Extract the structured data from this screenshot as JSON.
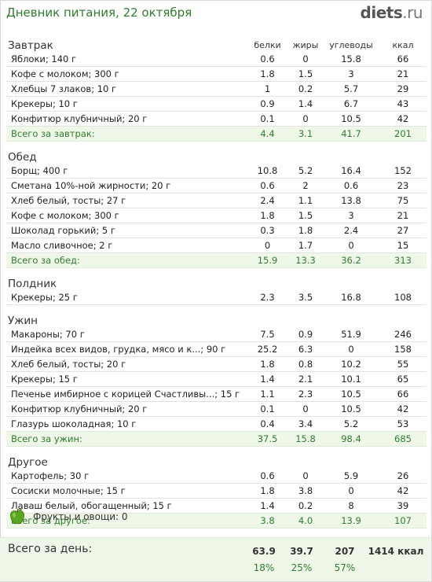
{
  "page": {
    "title": "Дневник питания, 22 октября",
    "logo_main": "diets",
    "logo_domain": ".ru"
  },
  "columns": [
    "белки",
    "жиры",
    "углеводы",
    "ккал"
  ],
  "meals": [
    {
      "name": "Завтрак",
      "show_headers": true,
      "items": [
        {
          "name": "Яблоки; 140 г",
          "protein": "0.6",
          "fat": "0",
          "carbs": "15.8",
          "kcal": "66"
        },
        {
          "name": "Кофе с молоком; 300 г",
          "protein": "1.8",
          "fat": "1.5",
          "carbs": "3",
          "kcal": "21"
        },
        {
          "name": "Хлебцы 7 злаков; 10 г",
          "protein": "1",
          "fat": "0.2",
          "carbs": "5.7",
          "kcal": "29"
        },
        {
          "name": "Крекеры; 10 г",
          "protein": "0.9",
          "fat": "1.4",
          "carbs": "6.7",
          "kcal": "43"
        },
        {
          "name": "Конфитюр клубничный; 20 г",
          "protein": "0.1",
          "fat": "0",
          "carbs": "10.5",
          "kcal": "42"
        }
      ],
      "total": {
        "label": "Всего за завтрак:",
        "protein": "4.4",
        "fat": "3.1",
        "carbs": "41.7",
        "kcal": "201"
      }
    },
    {
      "name": "Обед",
      "show_headers": false,
      "items": [
        {
          "name": "Борщ; 400 г",
          "protein": "10.8",
          "fat": "5.2",
          "carbs": "16.4",
          "kcal": "152"
        },
        {
          "name": "Сметана 10%-ной жирности; 20 г",
          "protein": "0.6",
          "fat": "2",
          "carbs": "0.6",
          "kcal": "23"
        },
        {
          "name": "Хлеб белый, тосты; 27 г",
          "protein": "2.4",
          "fat": "1.1",
          "carbs": "13.8",
          "kcal": "75"
        },
        {
          "name": "Кофе с молоком; 300 г",
          "protein": "1.8",
          "fat": "1.5",
          "carbs": "3",
          "kcal": "21"
        },
        {
          "name": "Шоколад горький; 5 г",
          "protein": "0.3",
          "fat": "1.8",
          "carbs": "2.4",
          "kcal": "27"
        },
        {
          "name": "Масло сливочное; 2 г",
          "protein": "0",
          "fat": "1.7",
          "carbs": "0",
          "kcal": "15"
        }
      ],
      "total": {
        "label": "Всего за обед:",
        "protein": "15.9",
        "fat": "13.3",
        "carbs": "36.2",
        "kcal": "313"
      }
    },
    {
      "name": "Полдник",
      "show_headers": false,
      "items": [
        {
          "name": "Крекеры; 25 г",
          "protein": "2.3",
          "fat": "3.5",
          "carbs": "16.8",
          "kcal": "108"
        }
      ],
      "total": null
    },
    {
      "name": "Ужин",
      "show_headers": false,
      "items": [
        {
          "name": "Макароны; 70 г",
          "protein": "7.5",
          "fat": "0.9",
          "carbs": "51.9",
          "kcal": "246"
        },
        {
          "name": "Индейка всех видов, грудка, мясо и к...; 90 г",
          "protein": "25.2",
          "fat": "6.3",
          "carbs": "0",
          "kcal": "158"
        },
        {
          "name": "Хлеб белый, тосты; 20 г",
          "protein": "1.8",
          "fat": "0.8",
          "carbs": "10.2",
          "kcal": "55"
        },
        {
          "name": "Крекеры; 15 г",
          "protein": "1.4",
          "fat": "2.1",
          "carbs": "10.1",
          "kcal": "65"
        },
        {
          "name": "Печенье имбирное с корицей Счастливы...; 15 г",
          "protein": "1.1",
          "fat": "2.3",
          "carbs": "10.5",
          "kcal": "66"
        },
        {
          "name": "Конфитюр клубничный; 20 г",
          "protein": "0.1",
          "fat": "0",
          "carbs": "10.5",
          "kcal": "42"
        },
        {
          "name": "Глазурь шоколадная; 10 г",
          "protein": "0.4",
          "fat": "3.4",
          "carbs": "5.2",
          "kcal": "53"
        }
      ],
      "total": {
        "label": "Всего за ужин:",
        "protein": "37.5",
        "fat": "15.8",
        "carbs": "98.4",
        "kcal": "685"
      }
    },
    {
      "name": "Другое",
      "show_headers": false,
      "items": [
        {
          "name": "Картофель; 30 г",
          "protein": "0.6",
          "fat": "0",
          "carbs": "5.9",
          "kcal": "26"
        },
        {
          "name": "Сосиски молочные; 15 г",
          "protein": "1.8",
          "fat": "3.8",
          "carbs": "0",
          "kcal": "42"
        },
        {
          "name": "Лаваш белый, обогащенный; 15 г",
          "protein": "1.4",
          "fat": "0.2",
          "carbs": "8",
          "kcal": "39"
        }
      ],
      "total": {
        "label": "Всего за другое:",
        "protein": "3.8",
        "fat": "4.0",
        "carbs": "13.9",
        "kcal": "107"
      }
    }
  ],
  "fruits": {
    "label": "Фрукты и овощи: 0",
    "icon": "green-apple-icon",
    "icon_color": "#5aa61e"
  },
  "day_total": {
    "label": "Всего за день:",
    "protein": "63.9",
    "fat": "39.7",
    "carbs": "207",
    "kcal": "1414 ккал",
    "protein_pct": "18%",
    "fat_pct": "25%",
    "carbs_pct": "57%"
  },
  "colors": {
    "accent_green": "#2f7d2f",
    "total_row_bg": "#eef7e8"
  }
}
